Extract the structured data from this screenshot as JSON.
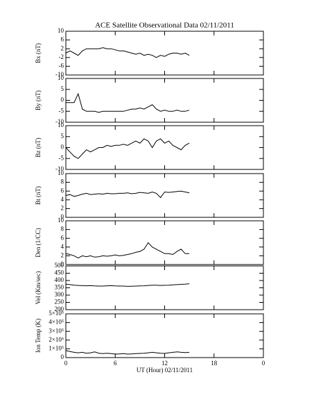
{
  "chart_data": [
    {
      "type": "line",
      "title": "ACE Satellite Observational Data   02/11/2011",
      "ylabel": "Bx (nT)",
      "color": "#000000",
      "xlim": [
        0,
        24
      ],
      "xticks": [
        0,
        6,
        12,
        18,
        {
          "value": 24,
          "label": "0"
        }
      ],
      "ylim": [
        -10,
        10
      ],
      "yticks": [
        -10,
        -6,
        -2,
        2,
        6,
        10
      ],
      "x": [
        0,
        0.5,
        1,
        1.5,
        2,
        2.5,
        3,
        3.5,
        4,
        4.5,
        5,
        5.5,
        6,
        6.5,
        7,
        7.5,
        8,
        8.5,
        9,
        9.5,
        10,
        10.5,
        11,
        11.5,
        12,
        12.5,
        13,
        13.5,
        14,
        14.5,
        15
      ],
      "values": [
        0,
        1,
        0,
        -1,
        1,
        2,
        2,
        2,
        2,
        2.5,
        2,
        2,
        1.5,
        1,
        1,
        0.5,
        0,
        -0.5,
        0,
        -1,
        -0.5,
        -1,
        -2,
        -1,
        -1.5,
        -0.5,
        0,
        0,
        -0.5,
        0,
        -1
      ]
    },
    {
      "type": "line",
      "ylabel": "By (nT)",
      "color": "#000000",
      "xlim": [
        0,
        24
      ],
      "xticks": [
        0,
        6,
        12,
        18,
        {
          "value": 24,
          "label": "0"
        }
      ],
      "ylim": [
        -10,
        10
      ],
      "yticks": [
        -10,
        -5,
        0,
        5,
        10
      ],
      "x": [
        0,
        0.5,
        1,
        1.5,
        2,
        2.5,
        3,
        3.5,
        4,
        4.5,
        5,
        5.5,
        6,
        6.5,
        7,
        7.5,
        8,
        8.5,
        9,
        9.5,
        10,
        10.5,
        11,
        11.5,
        12,
        12.5,
        13,
        13.5,
        14,
        14.5,
        15
      ],
      "values": [
        -1,
        -1,
        -1,
        3,
        -4,
        -5,
        -5,
        -5,
        -5.5,
        -5,
        -5,
        -5,
        -5,
        -5,
        -5,
        -4.5,
        -4,
        -4,
        -3.5,
        -4,
        -3,
        -2,
        -4,
        -5,
        -4.5,
        -5,
        -5,
        -4.5,
        -5,
        -5,
        -4.5
      ]
    },
    {
      "type": "line",
      "ylabel": "Bz (nT)",
      "color": "#000000",
      "xlim": [
        0,
        24
      ],
      "xticks": [
        0,
        6,
        12,
        18,
        {
          "value": 24,
          "label": "0"
        }
      ],
      "ylim": [
        -10,
        10
      ],
      "yticks": [
        -10,
        -5,
        0,
        5,
        10
      ],
      "x": [
        0,
        0.5,
        1,
        1.5,
        2,
        2.5,
        3,
        3.5,
        4,
        4.5,
        5,
        5.5,
        6,
        6.5,
        7,
        7.5,
        8,
        8.5,
        9,
        9.5,
        10,
        10.5,
        11,
        11.5,
        12,
        12.5,
        13,
        13.5,
        14,
        14.5,
        15
      ],
      "values": [
        0,
        -2,
        -4,
        -5,
        -3,
        -1,
        -2,
        -1,
        0,
        0,
        1,
        0.5,
        1,
        1,
        1.5,
        1,
        2,
        3,
        2,
        4,
        3,
        0,
        3,
        4,
        2,
        3,
        1,
        0,
        -1,
        1,
        2
      ]
    },
    {
      "type": "line",
      "ylabel": "Bt (nT)",
      "color": "#000000",
      "xlim": [
        0,
        24
      ],
      "xticks": [
        0,
        6,
        12,
        18,
        {
          "value": 24,
          "label": "0"
        }
      ],
      "ylim": [
        0,
        10
      ],
      "yticks": [
        0,
        2,
        4,
        6,
        8,
        10
      ],
      "x": [
        0,
        0.5,
        1,
        1.5,
        2,
        2.5,
        3,
        3.5,
        4,
        4.5,
        5,
        5.5,
        6,
        6.5,
        7,
        7.5,
        8,
        8.5,
        9,
        9.5,
        10,
        10.5,
        11,
        11.5,
        12,
        12.5,
        13,
        13.5,
        14,
        14.5,
        15
      ],
      "values": [
        5,
        5.2,
        4.8,
        5,
        5.3,
        5.5,
        5.2,
        5.3,
        5.4,
        5.3,
        5.5,
        5.4,
        5.4,
        5.5,
        5.5,
        5.6,
        5.4,
        5.5,
        5.7,
        5.6,
        5.5,
        5.8,
        5.5,
        4.5,
        5.8,
        5.7,
        5.8,
        5.9,
        6,
        5.8,
        5.6
      ]
    },
    {
      "type": "line",
      "ylabel": "Den (1/CC)",
      "color": "#000000",
      "xlim": [
        0,
        24
      ],
      "xticks": [
        0,
        6,
        12,
        18,
        {
          "value": 24,
          "label": "0"
        }
      ],
      "ylim": [
        0,
        10
      ],
      "yticks": [
        0,
        2,
        4,
        6,
        8,
        10
      ],
      "x": [
        0,
        0.5,
        1,
        1.5,
        2,
        2.5,
        3,
        3.5,
        4,
        4.5,
        5,
        5.5,
        6,
        6.5,
        7,
        7.5,
        8,
        8.5,
        9,
        9.5,
        10,
        10.5,
        11,
        11.5,
        12,
        12.5,
        13,
        13.5,
        14,
        14.5,
        15
      ],
      "values": [
        2.5,
        2.3,
        2,
        1.5,
        2,
        1.8,
        2,
        1.7,
        1.8,
        2,
        1.9,
        2,
        2.2,
        2,
        2.1,
        2.3,
        2.5,
        2.8,
        3,
        3.5,
        5,
        4,
        3.5,
        3,
        2.5,
        2.5,
        2.3,
        3,
        3.5,
        2.5,
        2.5
      ]
    },
    {
      "type": "line",
      "ylabel": "Vel (Km/sec)",
      "color": "#000000",
      "xlim": [
        0,
        24
      ],
      "xticks": [
        0,
        6,
        12,
        18,
        {
          "value": 24,
          "label": "0"
        }
      ],
      "ylim": [
        200,
        500
      ],
      "yticks": [
        200,
        250,
        300,
        350,
        400,
        450,
        500
      ],
      "x": [
        0,
        0.5,
        1,
        1.5,
        2,
        2.5,
        3,
        3.5,
        4,
        4.5,
        5,
        5.5,
        6,
        6.5,
        7,
        7.5,
        8,
        8.5,
        9,
        9.5,
        10,
        10.5,
        11,
        11.5,
        12,
        12.5,
        13,
        13.5,
        14,
        14.5,
        15
      ],
      "values": [
        375,
        372,
        368,
        366,
        365,
        364,
        365,
        363,
        362,
        362,
        364,
        365,
        363,
        362,
        362,
        360,
        361,
        362,
        363,
        364,
        366,
        368,
        368,
        366,
        367,
        368,
        370,
        372,
        374,
        375,
        378
      ]
    },
    {
      "type": "line",
      "ylabel": "Ion Temp (K)",
      "xlabel": "UT (Hour)   02/11/2011",
      "color": "#000000",
      "xlim": [
        0,
        24
      ],
      "xticks": [
        0,
        6,
        12,
        18,
        {
          "value": 24,
          "label": "0"
        }
      ],
      "ylim": [
        0,
        500000
      ],
      "yticks": [
        0,
        {
          "value": 100000,
          "label": "1×10⁵"
        },
        {
          "value": 200000,
          "label": "2×10⁵"
        },
        {
          "value": 300000,
          "label": "3×10⁵"
        },
        {
          "value": 400000,
          "label": "4×10⁵"
        },
        {
          "value": 500000,
          "label": "5×10⁵"
        }
      ],
      "x": [
        0,
        0.5,
        1,
        1.5,
        2,
        2.5,
        3,
        3.5,
        4,
        4.5,
        5,
        5.5,
        6,
        6.5,
        7,
        7.5,
        8,
        8.5,
        9,
        9.5,
        10,
        10.5,
        11,
        11.5,
        12,
        12.5,
        13,
        13.5,
        14,
        14.5,
        15
      ],
      "values": [
        80000,
        70000,
        60000,
        55000,
        60000,
        50000,
        55000,
        65000,
        50000,
        45000,
        50000,
        45000,
        40000,
        42000,
        45000,
        40000,
        42000,
        45000,
        48000,
        50000,
        55000,
        60000,
        55000,
        50000,
        48000,
        55000,
        60000,
        65000,
        60000,
        58000,
        60000
      ]
    }
  ]
}
